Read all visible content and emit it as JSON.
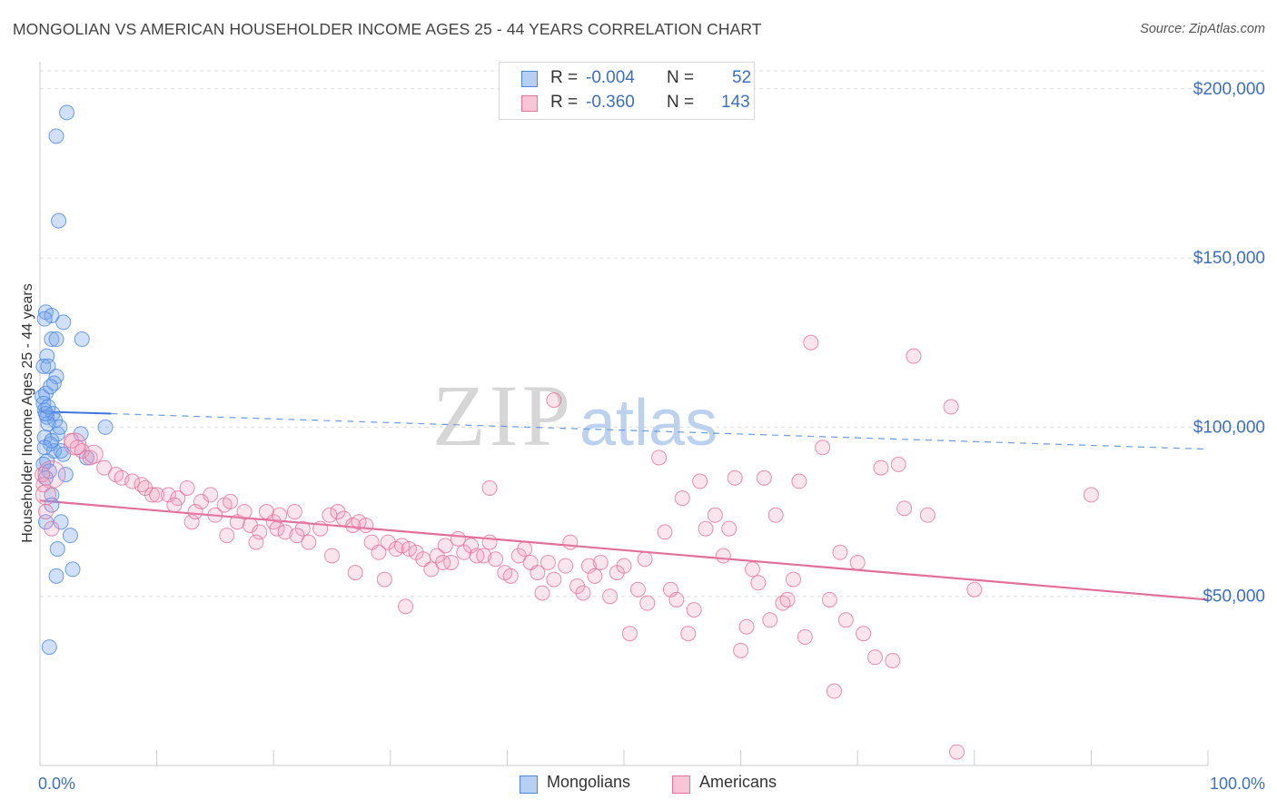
{
  "header": {
    "title": "MONGOLIAN VS AMERICAN HOUSEHOLDER INCOME AGES 25 - 44 YEARS CORRELATION CHART",
    "source": "Source: ZipAtlas.com"
  },
  "watermark": {
    "zip": "ZIP",
    "atlas": "atlas"
  },
  "legend": {
    "rows": [
      {
        "r_label": "R =",
        "r_value": "-0.004",
        "n_label": "N =",
        "n_value": "52",
        "color": "#4a86e8"
      },
      {
        "r_label": "R =",
        "r_value": "-0.360",
        "n_label": "N =",
        "n_value": "143",
        "color": "#e8729a"
      }
    ]
  },
  "bottom_legend": [
    {
      "label": "Mongolians",
      "color": "#4a86e8"
    },
    {
      "label": "Americans",
      "color": "#e8729a"
    }
  ],
  "chart_data": {
    "type": "scatter",
    "title": "MONGOLIAN VS AMERICAN HOUSEHOLDER INCOME AGES 25 - 44 YEARS CORRELATION CHART",
    "xlabel": "",
    "ylabel": "Householder Income Ages 25 - 44 years",
    "xlim": [
      0,
      100
    ],
    "ylim": [
      0,
      208000
    ],
    "x_tick_labels": [
      "0.0%",
      "100.0%"
    ],
    "y_ticks": [
      50000,
      100000,
      150000,
      200000
    ],
    "y_tick_labels": [
      "$50,000",
      "$100,000",
      "$150,000",
      "$200,000"
    ],
    "grid": true,
    "legend_position": "top-center",
    "series": [
      {
        "name": "Mongolians",
        "color": "#4a86e8",
        "points": [
          [
            2.3,
            193000
          ],
          [
            1.4,
            186000
          ],
          [
            1.6,
            161000
          ],
          [
            0.5,
            134000
          ],
          [
            1.0,
            133000
          ],
          [
            0.4,
            132000
          ],
          [
            2.0,
            131000
          ],
          [
            1.0,
            126000
          ],
          [
            1.4,
            126000
          ],
          [
            3.6,
            126000
          ],
          [
            0.6,
            121000
          ],
          [
            0.3,
            118000
          ],
          [
            0.7,
            118000
          ],
          [
            1.4,
            115000
          ],
          [
            1.2,
            113000
          ],
          [
            0.5,
            110000
          ],
          [
            0.2,
            109000
          ],
          [
            0.3,
            107000
          ],
          [
            0.4,
            105000
          ],
          [
            1.1,
            104000
          ],
          [
            0.6,
            103000
          ],
          [
            1.3,
            102000
          ],
          [
            0.7,
            101000
          ],
          [
            5.6,
            100000
          ],
          [
            1.5,
            98000
          ],
          [
            3.5,
            98000
          ],
          [
            0.4,
            97000
          ],
          [
            0.9,
            95000
          ],
          [
            1.2,
            93000
          ],
          [
            1.8,
            93000
          ],
          [
            2.0,
            92000
          ],
          [
            4.0,
            91000
          ],
          [
            0.6,
            90000
          ],
          [
            0.3,
            89000
          ],
          [
            0.8,
            87000
          ],
          [
            0.5,
            85000
          ],
          [
            1.0,
            80000
          ],
          [
            1.0,
            77000
          ],
          [
            1.8,
            72000
          ],
          [
            0.5,
            72000
          ],
          [
            2.6,
            68000
          ],
          [
            1.5,
            64000
          ],
          [
            2.8,
            58000
          ],
          [
            1.4,
            56000
          ],
          [
            0.8,
            35000
          ],
          [
            0.5,
            104000
          ],
          [
            1.0,
            96000
          ],
          [
            0.7,
            106000
          ],
          [
            0.9,
            112000
          ],
          [
            1.7,
            100000
          ],
          [
            0.4,
            94000
          ],
          [
            2.2,
            86000
          ]
        ],
        "trend": {
          "x": [
            0,
            6.1
          ],
          "y": [
            104600,
            104000
          ],
          "dashed_to": [
            100,
            93500
          ]
        }
      },
      {
        "name": "Americans",
        "color": "#e8729a",
        "points": [
          [
            0.2,
            86000
          ],
          [
            0.3,
            83000
          ],
          [
            0.5,
            75000
          ],
          [
            1.0,
            70000
          ],
          [
            2.7,
            96000
          ],
          [
            3.2,
            94000
          ],
          [
            3.6,
            93000
          ],
          [
            4.3,
            91000
          ],
          [
            5.5,
            88000
          ],
          [
            6.5,
            86000
          ],
          [
            7.0,
            85000
          ],
          [
            7.9,
            84000
          ],
          [
            8.7,
            83000
          ],
          [
            9.0,
            82000
          ],
          [
            9.6,
            80000
          ],
          [
            10.0,
            80000
          ],
          [
            11.0,
            80000
          ],
          [
            11.8,
            79000
          ],
          [
            12.6,
            82000
          ],
          [
            13.0,
            72000
          ],
          [
            13.8,
            78000
          ],
          [
            14.6,
            80000
          ],
          [
            15.0,
            74000
          ],
          [
            15.8,
            77000
          ],
          [
            16.3,
            78000
          ],
          [
            16.9,
            72000
          ],
          [
            17.5,
            75000
          ],
          [
            18.0,
            71000
          ],
          [
            18.8,
            69000
          ],
          [
            19.4,
            75000
          ],
          [
            20.0,
            72000
          ],
          [
            20.3,
            70000
          ],
          [
            21.0,
            69000
          ],
          [
            21.8,
            75000
          ],
          [
            22.5,
            70000
          ],
          [
            23.0,
            66000
          ],
          [
            24.0,
            70000
          ],
          [
            24.8,
            74000
          ],
          [
            25.5,
            75000
          ],
          [
            26.0,
            73000
          ],
          [
            26.8,
            71000
          ],
          [
            27.3,
            72000
          ],
          [
            27.9,
            71000
          ],
          [
            28.4,
            66000
          ],
          [
            29.0,
            63000
          ],
          [
            29.8,
            66000
          ],
          [
            30.5,
            64000
          ],
          [
            31.0,
            65000
          ],
          [
            31.6,
            64000
          ],
          [
            32.2,
            63000
          ],
          [
            32.8,
            61000
          ],
          [
            33.5,
            58000
          ],
          [
            34.0,
            62000
          ],
          [
            34.7,
            65000
          ],
          [
            35.2,
            60000
          ],
          [
            35.8,
            67000
          ],
          [
            36.3,
            63000
          ],
          [
            36.9,
            65000
          ],
          [
            37.4,
            62000
          ],
          [
            38.0,
            62000
          ],
          [
            38.5,
            66000
          ],
          [
            39.0,
            61000
          ],
          [
            39.8,
            57000
          ],
          [
            40.3,
            56000
          ],
          [
            41.0,
            62000
          ],
          [
            41.5,
            64000
          ],
          [
            42.0,
            60000
          ],
          [
            42.6,
            57000
          ],
          [
            43.0,
            51000
          ],
          [
            43.5,
            60000
          ],
          [
            44.0,
            55000
          ],
          [
            45.0,
            59000
          ],
          [
            45.4,
            66000
          ],
          [
            46.0,
            53000
          ],
          [
            46.5,
            51000
          ],
          [
            47.0,
            59000
          ],
          [
            47.5,
            56000
          ],
          [
            48.0,
            60000
          ],
          [
            48.8,
            50000
          ],
          [
            49.4,
            57000
          ],
          [
            50.0,
            59000
          ],
          [
            50.5,
            39000
          ],
          [
            51.2,
            52000
          ],
          [
            51.8,
            61000
          ],
          [
            52.0,
            48000
          ],
          [
            53.0,
            91000
          ],
          [
            53.5,
            69000
          ],
          [
            54.0,
            52000
          ],
          [
            54.5,
            49000
          ],
          [
            55.0,
            79000
          ],
          [
            55.5,
            39000
          ],
          [
            56.0,
            46000
          ],
          [
            56.5,
            84000
          ],
          [
            57.0,
            70000
          ],
          [
            57.8,
            74000
          ],
          [
            58.5,
            62000
          ],
          [
            59.0,
            70000
          ],
          [
            59.5,
            85000
          ],
          [
            60.0,
            34000
          ],
          [
            60.5,
            41000
          ],
          [
            61.0,
            58000
          ],
          [
            61.5,
            54000
          ],
          [
            62.0,
            85000
          ],
          [
            62.5,
            43000
          ],
          [
            63.0,
            74000
          ],
          [
            63.6,
            48000
          ],
          [
            64.0,
            49000
          ],
          [
            64.5,
            55000
          ],
          [
            65.0,
            84000
          ],
          [
            65.5,
            38000
          ],
          [
            66.0,
            125000
          ],
          [
            67.0,
            94000
          ],
          [
            67.6,
            49000
          ],
          [
            68.0,
            22000
          ],
          [
            68.5,
            63000
          ],
          [
            69.0,
            43000
          ],
          [
            70.0,
            60000
          ],
          [
            70.5,
            39000
          ],
          [
            71.5,
            32000
          ],
          [
            72.0,
            88000
          ],
          [
            73.0,
            31000
          ],
          [
            73.5,
            89000
          ],
          [
            74.0,
            76000
          ],
          [
            74.8,
            121000
          ],
          [
            76.0,
            74000
          ],
          [
            78.0,
            106000
          ],
          [
            78.5,
            4000
          ],
          [
            90.0,
            80000
          ],
          [
            80.0,
            52000
          ],
          [
            44.0,
            108000
          ],
          [
            38.5,
            82000
          ],
          [
            34.5,
            60000
          ],
          [
            31.3,
            47000
          ],
          [
            29.5,
            55000
          ],
          [
            27.0,
            57000
          ],
          [
            25.0,
            62000
          ],
          [
            22.0,
            68000
          ],
          [
            20.5,
            74000
          ],
          [
            18.5,
            66000
          ],
          [
            16.0,
            68000
          ],
          [
            13.3,
            75000
          ],
          [
            11.5,
            77000
          ]
        ],
        "trend": {
          "x": [
            0,
            100
          ],
          "y": [
            78300,
            49000
          ]
        }
      }
    ]
  }
}
